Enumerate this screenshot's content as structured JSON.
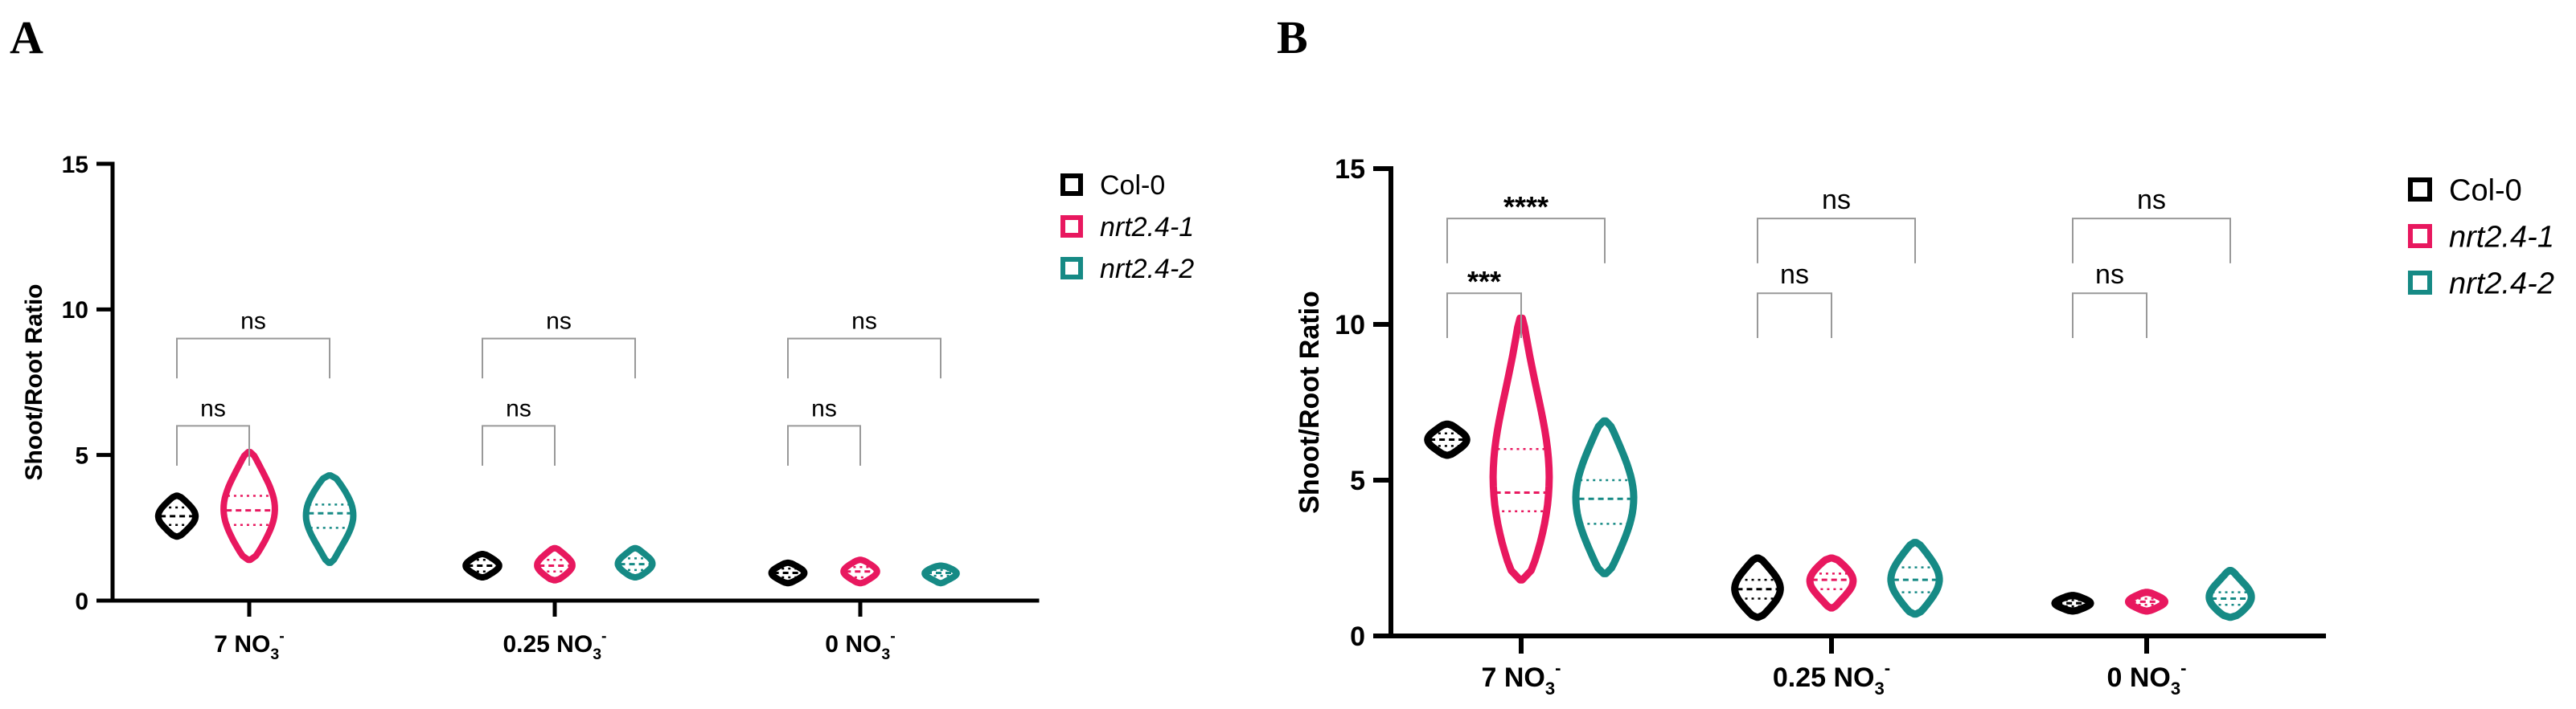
{
  "colors": {
    "Col-0": "#000000",
    "nrt2.4-1": "#e8185f",
    "nrt2.4-2": "#168a85",
    "bracket": "#999999",
    "axis": "#000000"
  },
  "chart_data": [
    {
      "panel": "A",
      "type": "violin",
      "title": "",
      "ylabel": "Shoot/Root Ratio",
      "xlabel": "",
      "ylim": [
        0,
        15
      ],
      "yticks": [
        "0",
        "5",
        "10",
        "15"
      ],
      "categories": [
        {
          "main": "7 NO",
          "sub": "3",
          "sup": "-"
        },
        {
          "main": "0.25 NO",
          "sub": "3",
          "sup": "-"
        },
        {
          "main": "0 NO",
          "sub": "3",
          "sup": "-"
        }
      ],
      "legend": [
        {
          "key": "Col-0",
          "label": "Col-0",
          "italic": false
        },
        {
          "key": "nrt2.4-1",
          "label": "nrt2.4-1",
          "italic": true
        },
        {
          "key": "nrt2.4-2",
          "label": "nrt2.4-2",
          "italic": true
        }
      ],
      "series": [
        {
          "name": "Col-0",
          "groups": [
            {
              "min": 2.2,
              "max": 3.6,
              "median": 2.9,
              "q1": 2.6,
              "q3": 3.2
            },
            {
              "min": 0.8,
              "max": 1.6,
              "median": 1.2,
              "q1": 1.0,
              "q3": 1.4
            },
            {
              "min": 0.6,
              "max": 1.3,
              "median": 0.95,
              "q1": 0.8,
              "q3": 1.1
            }
          ]
        },
        {
          "name": "nrt2.4-1",
          "groups": [
            {
              "min": 1.4,
              "max": 5.1,
              "median": 3.1,
              "q1": 2.6,
              "q3": 3.6
            },
            {
              "min": 0.7,
              "max": 1.8,
              "median": 1.2,
              "q1": 1.0,
              "q3": 1.4
            },
            {
              "min": 0.6,
              "max": 1.4,
              "median": 1.0,
              "q1": 0.8,
              "q3": 1.15
            }
          ]
        },
        {
          "name": "nrt2.4-2",
          "groups": [
            {
              "min": 1.3,
              "max": 4.3,
              "median": 3.0,
              "q1": 2.5,
              "q3": 3.3
            },
            {
              "min": 0.8,
              "max": 1.8,
              "median": 1.25,
              "q1": 1.05,
              "q3": 1.45
            },
            {
              "min": 0.6,
              "max": 1.2,
              "median": 0.95,
              "q1": 0.85,
              "q3": 1.05
            }
          ]
        }
      ],
      "brackets": [
        {
          "category": 0,
          "from": 0,
          "to": 1,
          "y": 6.0,
          "label": "ns"
        },
        {
          "category": 0,
          "from": 0,
          "to": 2,
          "y": 9.0,
          "label": "ns"
        },
        {
          "category": 1,
          "from": 0,
          "to": 1,
          "y": 6.0,
          "label": "ns"
        },
        {
          "category": 1,
          "from": 0,
          "to": 2,
          "y": 9.0,
          "label": "ns"
        },
        {
          "category": 2,
          "from": 0,
          "to": 1,
          "y": 6.0,
          "label": "ns"
        },
        {
          "category": 2,
          "from": 0,
          "to": 2,
          "y": 9.0,
          "label": "ns"
        }
      ]
    },
    {
      "panel": "B",
      "type": "violin",
      "title": "",
      "ylabel": "Shoot/Root Ratio",
      "xlabel": "",
      "ylim": [
        0,
        15
      ],
      "yticks": [
        "0",
        "5",
        "10",
        "15"
      ],
      "categories": [
        {
          "main": "7 NO",
          "sub": "3",
          "sup": "-"
        },
        {
          "main": "0.25 NO",
          "sub": "3",
          "sup": "-"
        },
        {
          "main": "0 NO",
          "sub": "3",
          "sup": "-"
        }
      ],
      "legend": [
        {
          "key": "Col-0",
          "label": "Col-0",
          "italic": false
        },
        {
          "key": "nrt2.4-1",
          "label": "nrt2.4-1",
          "italic": true
        },
        {
          "key": "nrt2.4-2",
          "label": "nrt2.4-2",
          "italic": true
        }
      ],
      "series": [
        {
          "name": "Col-0",
          "groups": [
            {
              "min": 5.8,
              "max": 6.8,
              "median": 6.3,
              "q1": 6.1,
              "q3": 6.5
            },
            {
              "min": 0.6,
              "max": 2.5,
              "median": 1.5,
              "q1": 1.2,
              "q3": 1.8
            },
            {
              "min": 0.8,
              "max": 1.3,
              "median": 1.05,
              "q1": 0.95,
              "q3": 1.15
            }
          ]
        },
        {
          "name": "nrt2.4-1",
          "groups": [
            {
              "min": 1.8,
              "max": 10.2,
              "median": 4.6,
              "q1": 4.0,
              "q3": 6.0
            },
            {
              "min": 0.9,
              "max": 2.5,
              "median": 1.8,
              "q1": 1.5,
              "q3": 2.0
            },
            {
              "min": 0.8,
              "max": 1.4,
              "median": 1.1,
              "q1": 1.0,
              "q3": 1.2
            }
          ]
        },
        {
          "name": "nrt2.4-2",
          "groups": [
            {
              "min": 2.0,
              "max": 6.9,
              "median": 4.4,
              "q1": 3.6,
              "q3": 5.0
            },
            {
              "min": 0.7,
              "max": 3.0,
              "median": 1.8,
              "q1": 1.4,
              "q3": 2.2
            },
            {
              "min": 0.6,
              "max": 2.1,
              "median": 1.2,
              "q1": 1.0,
              "q3": 1.4
            }
          ]
        }
      ],
      "brackets": [
        {
          "category": 0,
          "from": 0,
          "to": 1,
          "y": 11.0,
          "label": "***"
        },
        {
          "category": 0,
          "from": 0,
          "to": 2,
          "y": 13.4,
          "label": "****"
        },
        {
          "category": 1,
          "from": 0,
          "to": 1,
          "y": 11.0,
          "label": "ns"
        },
        {
          "category": 1,
          "from": 0,
          "to": 2,
          "y": 13.4,
          "label": "ns"
        },
        {
          "category": 2,
          "from": 0,
          "to": 1,
          "y": 11.0,
          "label": "ns"
        },
        {
          "category": 2,
          "from": 0,
          "to": 2,
          "y": 13.4,
          "label": "ns"
        }
      ]
    }
  ]
}
